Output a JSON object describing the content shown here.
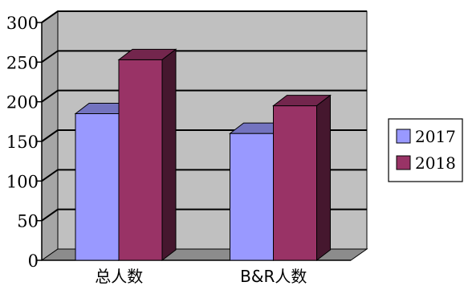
{
  "chart_data": {
    "type": "bar",
    "categories": [
      "总人数",
      "B&R人数"
    ],
    "series": [
      {
        "name": "2017",
        "values": [
          185,
          160
        ],
        "color": "#9999ff"
      },
      {
        "name": "2018",
        "values": [
          253,
          195
        ],
        "color": "#993366"
      }
    ],
    "ylim": [
      0,
      300
    ],
    "yticks": [
      "0",
      "50",
      "100",
      "150",
      "200",
      "250",
      "300"
    ],
    "grid": true,
    "legend_position": "right",
    "wall_color": "#c0c0c0"
  }
}
